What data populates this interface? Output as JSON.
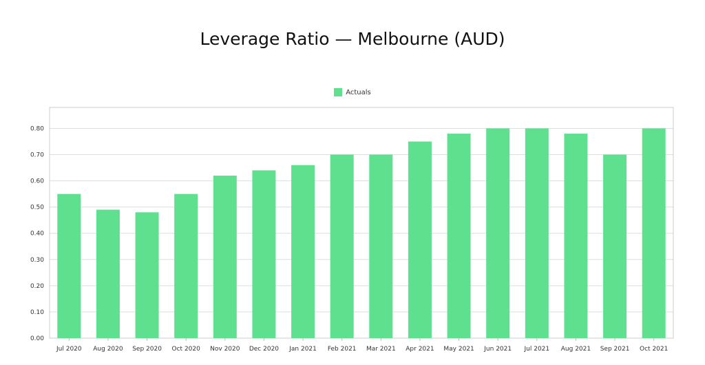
{
  "chart_data": {
    "type": "bar",
    "title": "Leverage Ratio — Melbourne (AUD)",
    "xlabel": "",
    "ylabel": "",
    "categories": [
      "Jul 2020",
      "Aug 2020",
      "Sep 2020",
      "Oct 2020",
      "Nov 2020",
      "Dec 2020",
      "Jan 2021",
      "Feb 2021",
      "Mar 2021",
      "Apr 2021",
      "May 2021",
      "Jun 2021",
      "Jul 2021",
      "Aug 2021",
      "Sep 2021",
      "Oct 2021"
    ],
    "series": [
      {
        "name": "Actuals",
        "color": "#5ee08f",
        "values": [
          0.55,
          0.49,
          0.48,
          0.55,
          0.62,
          0.64,
          0.66,
          0.7,
          0.7,
          0.75,
          0.78,
          0.8,
          0.8,
          0.78,
          0.7,
          0.8
        ]
      }
    ],
    "ylim": [
      0,
      0.88
    ],
    "yticks": [
      "0.00",
      "0.10",
      "0.20",
      "0.30",
      "0.40",
      "0.50",
      "0.60",
      "0.70",
      "0.80"
    ],
    "ytick_values": [
      0,
      0.1,
      0.2,
      0.3,
      0.4,
      0.5,
      0.6,
      0.7,
      0.8
    ],
    "grid": true,
    "legend_position": "top-center"
  }
}
